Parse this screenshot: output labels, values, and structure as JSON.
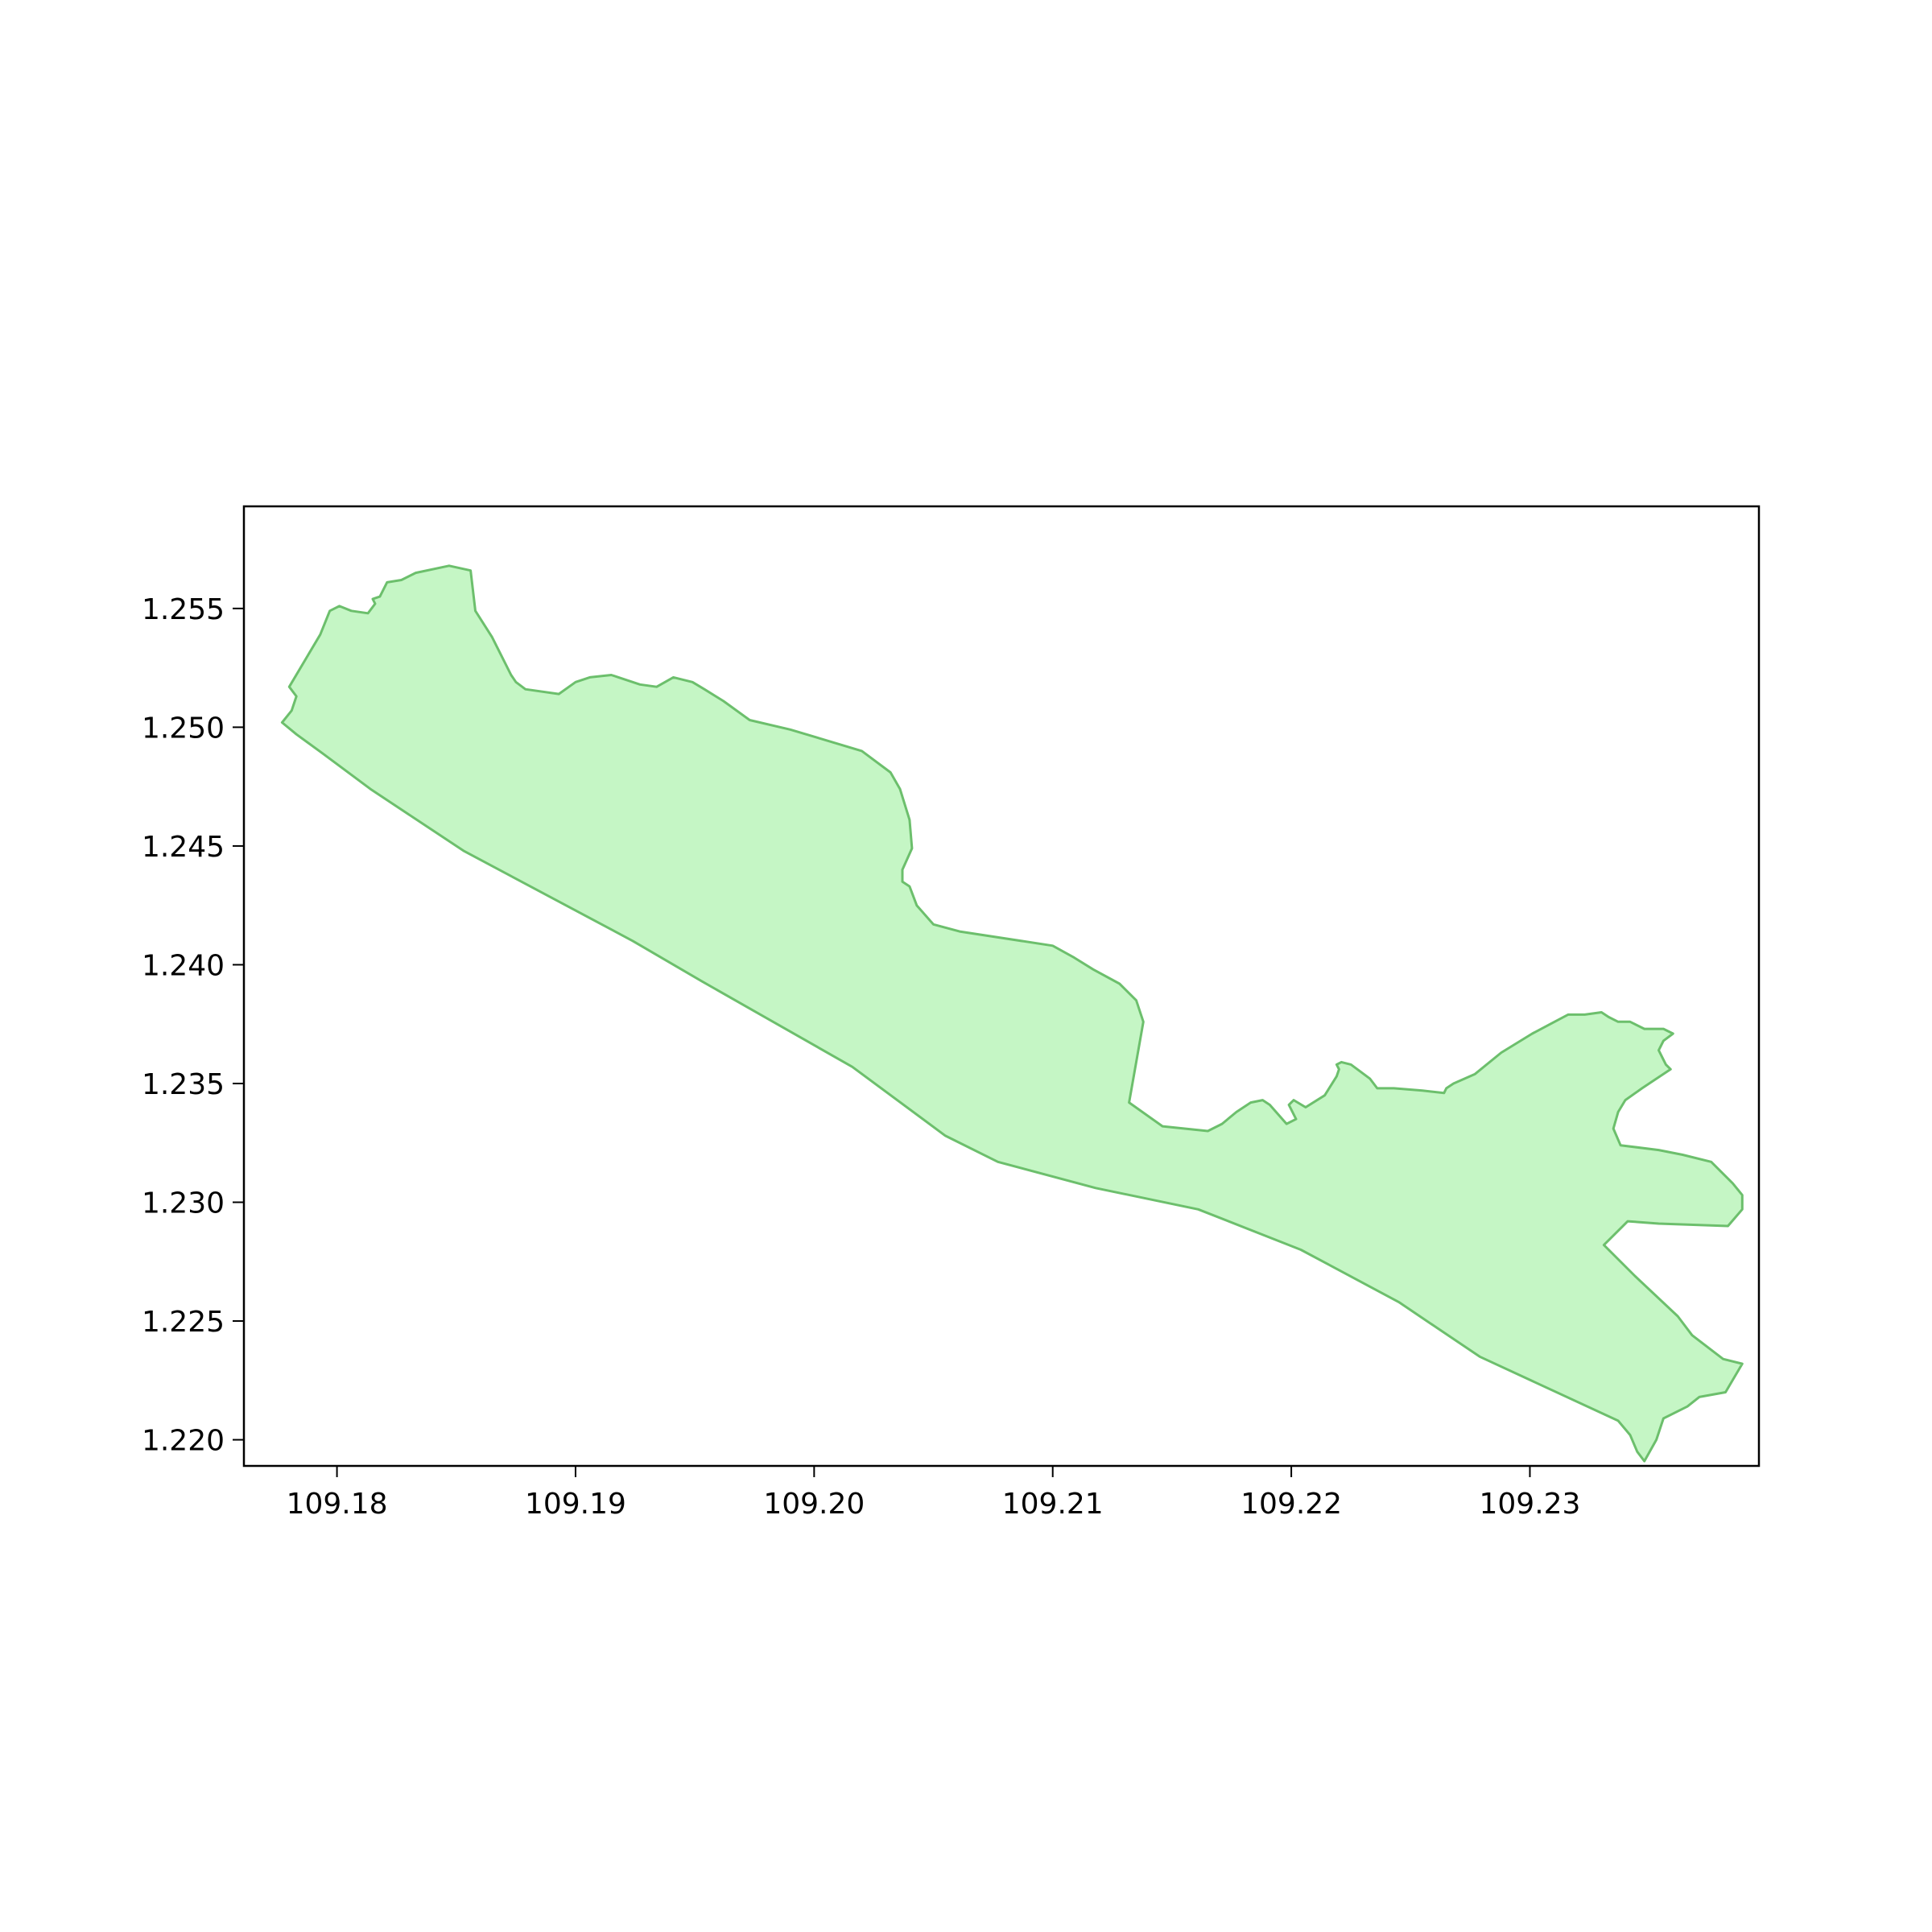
{
  "map": {
    "type": "polygon-map",
    "x_ticks": [
      "109.18",
      "109.19",
      "109.20",
      "109.21",
      "109.22",
      "109.23"
    ],
    "y_ticks": [
      "1.255",
      "1.250",
      "1.245",
      "1.240",
      "1.235",
      "1.230",
      "1.225",
      "1.220"
    ],
    "x_tick_values": [
      109.18,
      109.19,
      109.2,
      109.21,
      109.22,
      109.23
    ],
    "y_tick_values": [
      1.255,
      1.25,
      1.245,
      1.24,
      1.235,
      1.23,
      1.225,
      1.22
    ],
    "xlim": [
      109.1761,
      109.2396
    ],
    "ylim": [
      1.2189,
      1.2593
    ],
    "fill_color": "#c5f6c5",
    "edge_color": "#6cbf6c",
    "polygon": [
      [
        109.1793,
        1.2539
      ],
      [
        109.1797,
        1.2549
      ],
      [
        109.1801,
        1.2551
      ],
      [
        109.1806,
        1.2549
      ],
      [
        109.1813,
        1.2548
      ],
      [
        109.1816,
        1.2552
      ],
      [
        109.1815,
        1.2554
      ],
      [
        109.1818,
        1.2555
      ],
      [
        109.1821,
        1.2561
      ],
      [
        109.1827,
        1.2562
      ],
      [
        109.1833,
        1.2565
      ],
      [
        109.1847,
        1.2568
      ],
      [
        109.1856,
        1.2566
      ],
      [
        109.1858,
        1.2549
      ],
      [
        109.1865,
        1.2538
      ],
      [
        109.1873,
        1.2522
      ],
      [
        109.1875,
        1.2519
      ],
      [
        109.1879,
        1.2516
      ],
      [
        109.1893,
        1.2514
      ],
      [
        109.19,
        1.2519
      ],
      [
        109.1906,
        1.2521
      ],
      [
        109.1915,
        1.2522
      ],
      [
        109.1918,
        1.2521
      ],
      [
        109.1927,
        1.2518
      ],
      [
        109.1934,
        1.2517
      ],
      [
        109.1941,
        1.2521
      ],
      [
        109.1949,
        1.2519
      ],
      [
        109.1954,
        1.2516
      ],
      [
        109.1962,
        1.2511
      ],
      [
        109.1973,
        1.2503
      ],
      [
        109.199,
        1.2499
      ],
      [
        109.202,
        1.249
      ],
      [
        109.2032,
        1.2481
      ],
      [
        109.2036,
        1.2474
      ],
      [
        109.204,
        1.2461
      ],
      [
        109.2041,
        1.2449
      ],
      [
        109.2037,
        1.244
      ],
      [
        109.2037,
        1.2435
      ],
      [
        109.204,
        1.2433
      ],
      [
        109.2043,
        1.2425
      ],
      [
        109.205,
        1.2417
      ],
      [
        109.2061,
        1.2414
      ],
      [
        109.21,
        1.2408
      ],
      [
        109.2109,
        1.2403
      ],
      [
        109.2117,
        1.2398
      ],
      [
        109.2128,
        1.2392
      ],
      [
        109.2135,
        1.2385
      ],
      [
        109.2138,
        1.2376
      ],
      [
        109.2132,
        1.2342
      ],
      [
        109.2146,
        1.2332
      ],
      [
        109.2165,
        1.233
      ],
      [
        109.2171,
        1.2333
      ],
      [
        109.2177,
        1.2338
      ],
      [
        109.2183,
        1.2342
      ],
      [
        109.2188,
        1.2343
      ],
      [
        109.2191,
        1.2341
      ],
      [
        109.2198,
        1.2333
      ],
      [
        109.2202,
        1.2335
      ],
      [
        109.2199,
        1.2341
      ],
      [
        109.2201,
        1.2343
      ],
      [
        109.2206,
        1.234
      ],
      [
        109.2214,
        1.2345
      ],
      [
        109.2219,
        1.2353
      ],
      [
        109.222,
        1.2356
      ],
      [
        109.2219,
        1.2358
      ],
      [
        109.2221,
        1.2359
      ],
      [
        109.2225,
        1.2358
      ],
      [
        109.2229,
        1.2355
      ],
      [
        109.2233,
        1.2352
      ],
      [
        109.2236,
        1.2348
      ],
      [
        109.2243,
        1.2348
      ],
      [
        109.2255,
        1.2347
      ],
      [
        109.2264,
        1.2346
      ],
      [
        109.2265,
        1.2348
      ],
      [
        109.2268,
        1.235
      ],
      [
        109.2277,
        1.2354
      ],
      [
        109.2288,
        1.2363
      ],
      [
        109.2301,
        1.2371
      ],
      [
        109.2316,
        1.2379
      ],
      [
        109.2323,
        1.2379
      ],
      [
        109.233,
        1.238
      ],
      [
        109.2333,
        1.2378
      ],
      [
        109.2337,
        1.2376
      ],
      [
        109.2342,
        1.2376
      ],
      [
        109.2348,
        1.2373
      ],
      [
        109.2356,
        1.2373
      ],
      [
        109.236,
        1.2371
      ],
      [
        109.2356,
        1.2368
      ],
      [
        109.2354,
        1.2364
      ],
      [
        109.2357,
        1.2358
      ],
      [
        109.2359,
        1.2356
      ],
      [
        109.2347,
        1.2348
      ],
      [
        109.234,
        1.2343
      ],
      [
        109.2337,
        1.2338
      ],
      [
        109.2335,
        1.2331
      ],
      [
        109.2338,
        1.2324
      ],
      [
        109.2354,
        1.2322
      ],
      [
        109.2364,
        1.232
      ],
      [
        109.2376,
        1.2317
      ],
      [
        109.2385,
        1.2308
      ],
      [
        109.2389,
        1.2303
      ],
      [
        109.2389,
        1.2297
      ],
      [
        109.2383,
        1.229
      ],
      [
        109.2354,
        1.2291
      ],
      [
        109.2341,
        1.2292
      ],
      [
        109.2331,
        1.2282
      ],
      [
        109.2344,
        1.2269
      ],
      [
        109.2362,
        1.2252
      ],
      [
        109.2368,
        1.2244
      ],
      [
        109.2381,
        1.2234
      ],
      [
        109.2389,
        1.2232
      ],
      [
        109.2382,
        1.222
      ],
      [
        109.2371,
        1.2218
      ],
      [
        109.2366,
        1.2214
      ],
      [
        109.2356,
        1.2209
      ],
      [
        109.2353,
        1.22
      ],
      [
        109.2348,
        1.2191
      ],
      [
        109.2345,
        1.2195
      ],
      [
        109.2342,
        1.2202
      ],
      [
        109.2337,
        1.2208
      ],
      [
        109.2279,
        1.2235
      ],
      [
        109.2245,
        1.2258
      ],
      [
        109.2204,
        1.228
      ],
      [
        109.2161,
        1.2297
      ],
      [
        109.2118,
        1.2306
      ],
      [
        109.2077,
        1.2317
      ],
      [
        109.2055,
        1.2328
      ],
      [
        109.2016,
        1.2357
      ],
      [
        109.1953,
        1.2393
      ],
      [
        109.1924,
        1.241
      ],
      [
        109.1853,
        1.2448
      ],
      [
        109.1814,
        1.2474
      ],
      [
        109.1794,
        1.2489
      ],
      [
        109.1783,
        1.2497
      ],
      [
        109.1777,
        1.2502
      ],
      [
        109.1781,
        1.2507
      ],
      [
        109.1783,
        1.2513
      ],
      [
        109.178,
        1.2517
      ]
    ]
  }
}
